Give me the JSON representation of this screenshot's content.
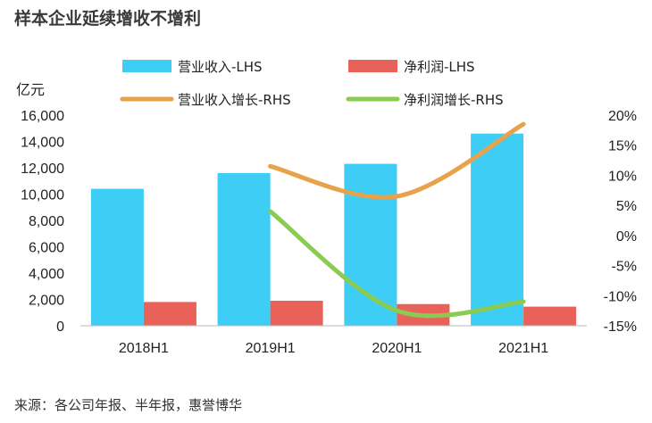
{
  "title": "样本企业延续增收不增利",
  "source": "来源：各公司年报、半年报，惠誉博华",
  "colors": {
    "revenue": "#3dcdf5",
    "profit": "#e9625a",
    "revenue_growth": "#e8a24a",
    "profit_growth": "#8acb51"
  },
  "chart_data": {
    "type": "bar",
    "categories": [
      "2018H1",
      "2019H1",
      "2020H1",
      "2021H1"
    ],
    "y_left_unit": "亿元",
    "y_left_lim": [
      0,
      16000
    ],
    "y_left_ticks": [
      "16,000",
      "14,000",
      "12,000",
      "10,000",
      "8,000",
      "6,000",
      "4,000",
      "2,000",
      "0"
    ],
    "y_right_lim": [
      -15,
      20
    ],
    "y_right_ticks": [
      "20%",
      "15%",
      "10%",
      "5%",
      "0%",
      "-5%",
      "-10%",
      "-15%"
    ],
    "series": [
      {
        "name": "营业收入-LHS",
        "type": "bar",
        "axis": "left",
        "values": [
          10400,
          11600,
          12300,
          14600
        ]
      },
      {
        "name": "净利润-LHS",
        "type": "bar",
        "axis": "left",
        "values": [
          1800,
          1900,
          1650,
          1450
        ]
      },
      {
        "name": "营业收入增长-RHS",
        "type": "line",
        "axis": "right",
        "values": [
          null,
          11.5,
          6.5,
          18.5
        ]
      },
      {
        "name": "净利润增长-RHS",
        "type": "line",
        "axis": "right",
        "values": [
          null,
          4.0,
          -12.5,
          -11.0
        ]
      }
    ],
    "legend_position": "top",
    "grid": false
  }
}
